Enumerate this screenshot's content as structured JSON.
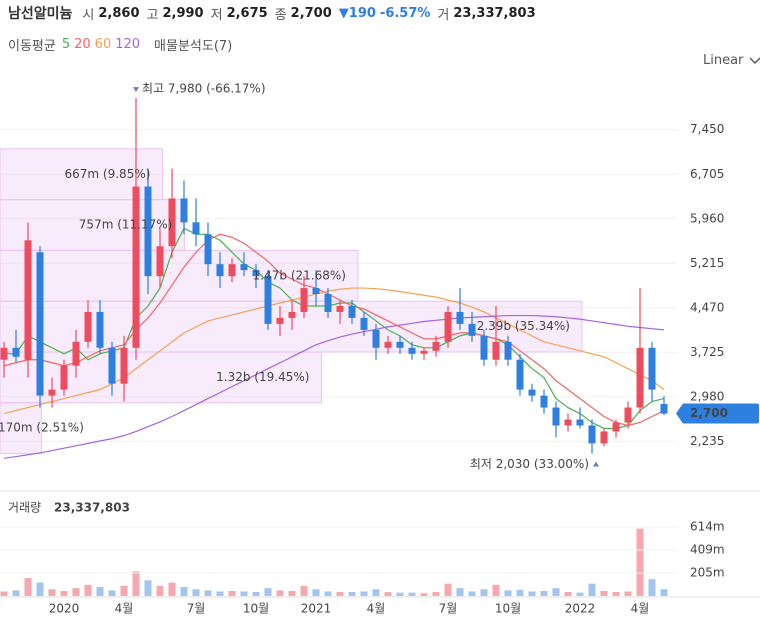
{
  "header": {
    "name": "남선알미늄",
    "quotes": [
      {
        "label": "시",
        "value": "2,860"
      },
      {
        "label": "고",
        "value": "2,990"
      },
      {
        "label": "저",
        "value": "2,675"
      },
      {
        "label": "종",
        "value": "2,700"
      }
    ],
    "change": "▼190",
    "change_pct": "-6.57%",
    "volume_label": "거",
    "volume": "23,337,803"
  },
  "chart_data": {
    "type": "candlestick",
    "ma_title": "이동평균",
    "scale": "Linear",
    "categories": [
      null,
      null,
      null,
      null,
      null,
      "2020",
      null,
      null,
      null,
      null,
      "4월",
      null,
      null,
      null,
      null,
      null,
      "7월",
      null,
      null,
      null,
      null,
      "10월",
      null,
      null,
      null,
      null,
      "2021",
      null,
      null,
      null,
      null,
      "4월",
      null,
      null,
      null,
      null,
      null,
      "7월",
      null,
      null,
      null,
      null,
      "10월",
      null,
      null,
      null,
      null,
      null,
      "2022",
      null,
      null,
      null,
      null,
      "4월",
      null,
      null
    ],
    "open": [
      3600,
      3800,
      3600,
      5400,
      3000,
      3100,
      3500,
      3900,
      4400,
      3800,
      3200,
      3800,
      6500,
      5000,
      5500,
      6300,
      5900,
      5700,
      5200,
      5000,
      5200,
      5100,
      5000,
      4200,
      4300,
      4400,
      4800,
      4700,
      4400,
      4500,
      4300,
      4100,
      3800,
      3900,
      3800,
      3700,
      3750,
      3900,
      4400,
      4200,
      4000,
      3600,
      3900,
      3600,
      3100,
      3000,
      2800,
      2500,
      2600,
      2500,
      2200,
      2400,
      2550,
      2800,
      3800,
      2860
    ],
    "high": [
      3900,
      4100,
      5900,
      5500,
      3300,
      3600,
      4100,
      4600,
      4600,
      3900,
      4000,
      7980,
      6800,
      5800,
      6800,
      6600,
      6300,
      5900,
      5400,
      5300,
      5400,
      5200,
      5100,
      4500,
      4600,
      5000,
      5100,
      4800,
      4600,
      4600,
      4400,
      4200,
      4000,
      4000,
      3900,
      3800,
      4000,
      4500,
      4800,
      4400,
      4100,
      4500,
      4000,
      3700,
      3200,
      3100,
      2900,
      2700,
      2800,
      2600,
      2450,
      2600,
      2900,
      4800,
      3900,
      2990
    ],
    "low": [
      3300,
      3550,
      3300,
      2800,
      2800,
      3000,
      3300,
      3800,
      3700,
      3000,
      2900,
      3600,
      4700,
      4800,
      5300,
      5700,
      5500,
      5000,
      4800,
      4900,
      5000,
      4800,
      4100,
      4000,
      4100,
      4300,
      4500,
      4300,
      4200,
      4200,
      4000,
      3600,
      3700,
      3700,
      3600,
      3600,
      3650,
      3800,
      4100,
      3900,
      3500,
      3500,
      3500,
      3000,
      2900,
      2700,
      2300,
      2400,
      2450,
      2030,
      2150,
      2300,
      2450,
      2700,
      2900,
      2675
    ],
    "close": [
      3800,
      3650,
      5600,
      3000,
      3100,
      3500,
      3900,
      4400,
      3800,
      3200,
      3800,
      6500,
      5000,
      5500,
      6300,
      5900,
      5700,
      5200,
      5000,
      5200,
      5100,
      5000,
      4200,
      4300,
      4400,
      4800,
      4700,
      4400,
      4500,
      4300,
      4100,
      3800,
      3900,
      3800,
      3700,
      3750,
      3900,
      4400,
      4200,
      4000,
      3600,
      3900,
      3600,
      3100,
      3000,
      2800,
      2500,
      2600,
      2500,
      2200,
      2400,
      2550,
      2800,
      3800,
      3100,
      2700
    ],
    "up_color": "#ef4b5f",
    "down_color": "#2d7fe0",
    "series": [
      {
        "name": "5",
        "color": "#4cb050",
        "values": [
          3700,
          3700,
          4000,
          3900,
          3800,
          3700,
          3800,
          3600,
          3700,
          3750,
          3800,
          4300,
          4500,
          4800,
          5400,
          5800,
          5700,
          5700,
          5600,
          5400,
          5200,
          5100,
          4900,
          4800,
          4600,
          4500,
          4500,
          4500,
          4550,
          4550,
          4400,
          4250,
          4100,
          4000,
          3850,
          3800,
          3800,
          3900,
          4000,
          4050,
          4000,
          3950,
          3850,
          3650,
          3450,
          3300,
          2950,
          2800,
          2700,
          2550,
          2450,
          2450,
          2500,
          2750,
          2900,
          2950
        ]
      },
      {
        "name": "20",
        "color": "#f26464",
        "values": [
          3500,
          3550,
          3600,
          3600,
          3550,
          3500,
          3550,
          3650,
          3750,
          3800,
          3850,
          4100,
          4300,
          4550,
          4850,
          5150,
          5400,
          5600,
          5700,
          5650,
          5550,
          5400,
          5250,
          5050,
          4950,
          4850,
          4800,
          4700,
          4600,
          4500,
          4450,
          4350,
          4250,
          4150,
          4050,
          3950,
          3950,
          4000,
          4050,
          4050,
          4000,
          3950,
          3900,
          3750,
          3600,
          3450,
          3250,
          3100,
          2950,
          2800,
          2650,
          2550,
          2500,
          2550,
          2650,
          2750
        ]
      },
      {
        "name": "60",
        "color": "#f3a154",
        "values": [
          2700,
          2750,
          2800,
          2850,
          2900,
          2950,
          3000,
          3050,
          3100,
          3200,
          3300,
          3450,
          3600,
          3750,
          3900,
          4050,
          4150,
          4250,
          4300,
          4350,
          4400,
          4450,
          4500,
          4550,
          4600,
          4650,
          4700,
          4750,
          4780,
          4800,
          4800,
          4790,
          4770,
          4740,
          4710,
          4680,
          4650,
          4600,
          4550,
          4480,
          4400,
          4300,
          4200,
          4100,
          4000,
          3900,
          3850,
          3800,
          3750,
          3700,
          3650,
          3550,
          3450,
          3350,
          3250,
          3100
        ]
      },
      {
        "name": "120",
        "color": "#a165e0",
        "values": [
          1950,
          1980,
          2010,
          2040,
          2080,
          2120,
          2160,
          2200,
          2240,
          2280,
          2330,
          2400,
          2480,
          2560,
          2650,
          2750,
          2850,
          2950,
          3050,
          3150,
          3250,
          3350,
          3450,
          3550,
          3650,
          3750,
          3850,
          3920,
          3980,
          4030,
          4070,
          4110,
          4150,
          4180,
          4210,
          4240,
          4260,
          4280,
          4300,
          4310,
          4320,
          4330,
          4340,
          4340,
          4340,
          4330,
          4320,
          4300,
          4280,
          4250,
          4220,
          4190,
          4160,
          4140,
          4120,
          4100
        ]
      }
    ],
    "ylim": [
      1420,
      8450
    ],
    "yticks": [
      {
        "value": 7450,
        "label": "7,450"
      },
      {
        "value": 6705,
        "label": "6,705"
      },
      {
        "value": 5960,
        "label": "5,960"
      },
      {
        "value": 5215,
        "label": "5,215"
      },
      {
        "value": 4470,
        "label": "4,470"
      },
      {
        "value": 3725,
        "label": "3,725"
      },
      {
        "value": 2980,
        "label": "2,980"
      },
      {
        "value": 2235,
        "label": "2,235"
      }
    ],
    "grid": true,
    "last_price": {
      "value": 2700,
      "label": "2,700",
      "color": "#2d7fe0"
    },
    "annotations": [
      {
        "kind": "high",
        "value": 7980,
        "text": "최고 7,980 (-66.17%)"
      },
      {
        "kind": "low",
        "value": 2030,
        "text": "최저 2,030 (33.00%)"
      }
    ],
    "volume_profile": {
      "title": "매물분석도(7)",
      "color": "#e9c3f5",
      "bands": [
        {
          "range": [
            6280,
            7130
          ],
          "value": 667000000,
          "label": "667m (9.85%)"
        },
        {
          "range": [
            5430,
            6280
          ],
          "value": 757000000,
          "label": "757m (11.17%)"
        },
        {
          "range": [
            4580,
            5430
          ],
          "value": 1470000000,
          "label": "1.47b (21.68%)"
        },
        {
          "range": [
            3730,
            4580
          ],
          "value": 2390000000,
          "label": "2.39b (35.34%)"
        },
        {
          "range": [
            2880,
            3730
          ],
          "value": 1320000000,
          "label": "1.32b (19.45%)"
        },
        {
          "range": [
            2030,
            2880
          ],
          "value": 170000000,
          "label": "170m (2.51%)"
        }
      ]
    },
    "volume": {
      "title": "거래량",
      "total": "23,337,803",
      "up_color": "#f6a7b0",
      "down_color": "#a3c4ee",
      "values": [
        40000000,
        50000000,
        160000000,
        120000000,
        60000000,
        45000000,
        70000000,
        100000000,
        80000000,
        50000000,
        90000000,
        220000000,
        140000000,
        90000000,
        120000000,
        80000000,
        60000000,
        50000000,
        40000000,
        45000000,
        40000000,
        35000000,
        70000000,
        50000000,
        45000000,
        90000000,
        60000000,
        40000000,
        35000000,
        35000000,
        40000000,
        60000000,
        35000000,
        30000000,
        30000000,
        25000000,
        35000000,
        110000000,
        70000000,
        40000000,
        60000000,
        100000000,
        50000000,
        55000000,
        40000000,
        45000000,
        70000000,
        35000000,
        30000000,
        110000000,
        45000000,
        35000000,
        40000000,
        600000000,
        150000000,
        60000000
      ],
      "ylim": [
        0,
        700000000
      ],
      "yticks": [
        {
          "value": 614000000,
          "label": "614m"
        },
        {
          "value": 409000000,
          "label": "409m"
        },
        {
          "value": 205000000,
          "label": "205m"
        }
      ]
    }
  }
}
